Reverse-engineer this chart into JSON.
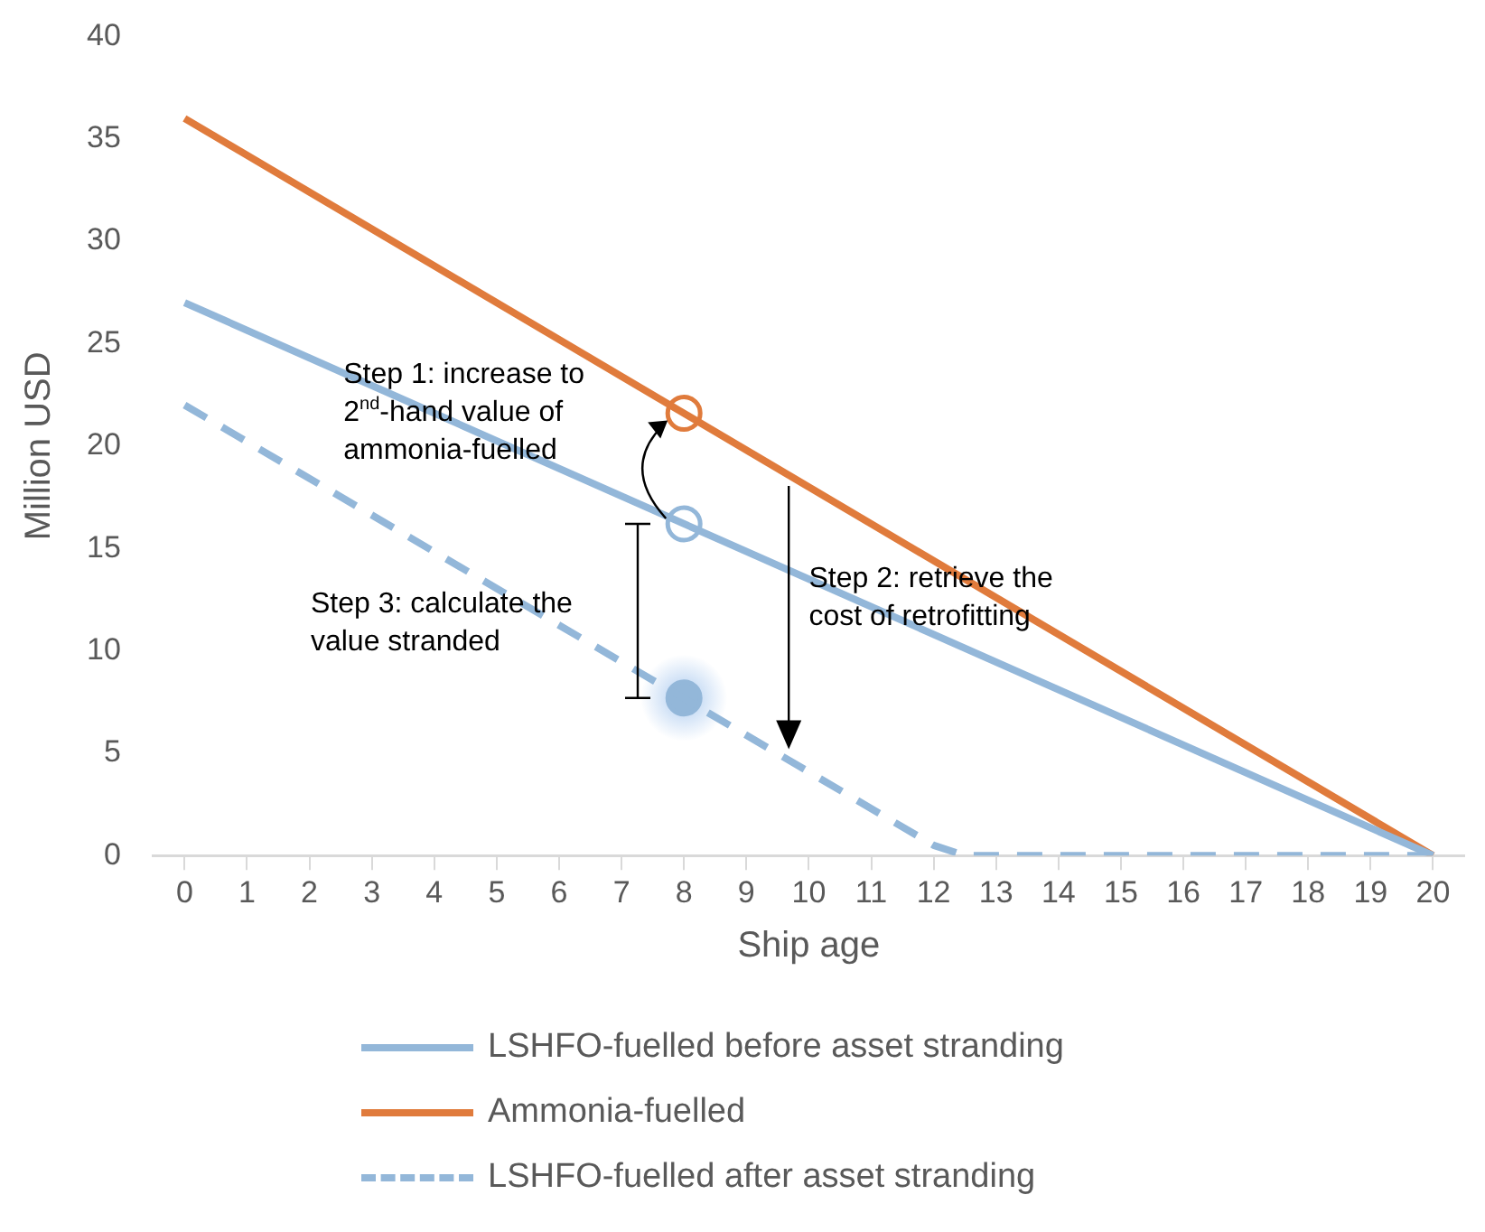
{
  "chart_data": {
    "type": "line",
    "xlabel": "Ship age",
    "ylabel": "Million USD",
    "xlim": [
      -0.5,
      20.5
    ],
    "xticks": [
      0,
      1,
      2,
      3,
      4,
      5,
      6,
      7,
      8,
      9,
      10,
      11,
      12,
      13,
      14,
      15,
      16,
      17,
      18,
      19,
      20
    ],
    "ylim": [
      0,
      40
    ],
    "yticks": [
      0,
      5,
      10,
      15,
      20,
      25,
      30,
      35,
      40
    ],
    "grid": false,
    "legend": "bottom",
    "marker": "none",
    "series": [
      {
        "name": "LSHFO-fuelled before asset stranding",
        "color": "#93b7d9",
        "x": [
          0,
          20
        ],
        "values": [
          27,
          0
        ],
        "line_style": "solid"
      },
      {
        "name": "Ammonia-fuelled",
        "color": "#e07b3c",
        "x": [
          0,
          20
        ],
        "values": [
          36,
          0
        ],
        "line_style": "solid"
      },
      {
        "name": "LSHFO-fuelled after asset stranding",
        "color": "#93b7d9",
        "x": [
          0,
          12,
          12.5,
          20
        ],
        "values": [
          22,
          0.5,
          0,
          0
        ],
        "line_style": "dashed"
      },
      {
        "type": "scatter",
        "color": "#e07b3c",
        "x": [
          8
        ],
        "values": [
          21.6
        ],
        "marker": "circle"
      },
      {
        "type": "scatter",
        "color": "#93b7d9",
        "x": [
          8
        ],
        "values": [
          16.2
        ],
        "marker": "circle"
      },
      {
        "type": "scatter",
        "color": "#93b7d9",
        "x": [
          8
        ],
        "values": [
          7.7
        ],
        "marker": "circle"
      }
    ],
    "annotations": [
      "Step 1: increase to 2$^{nd}$-hand value of ammonia-fuelled",
      "Step 2: retrieve the cost of retrofitting",
      "Step 3: calculate the value stranded"
    ]
  }
}
